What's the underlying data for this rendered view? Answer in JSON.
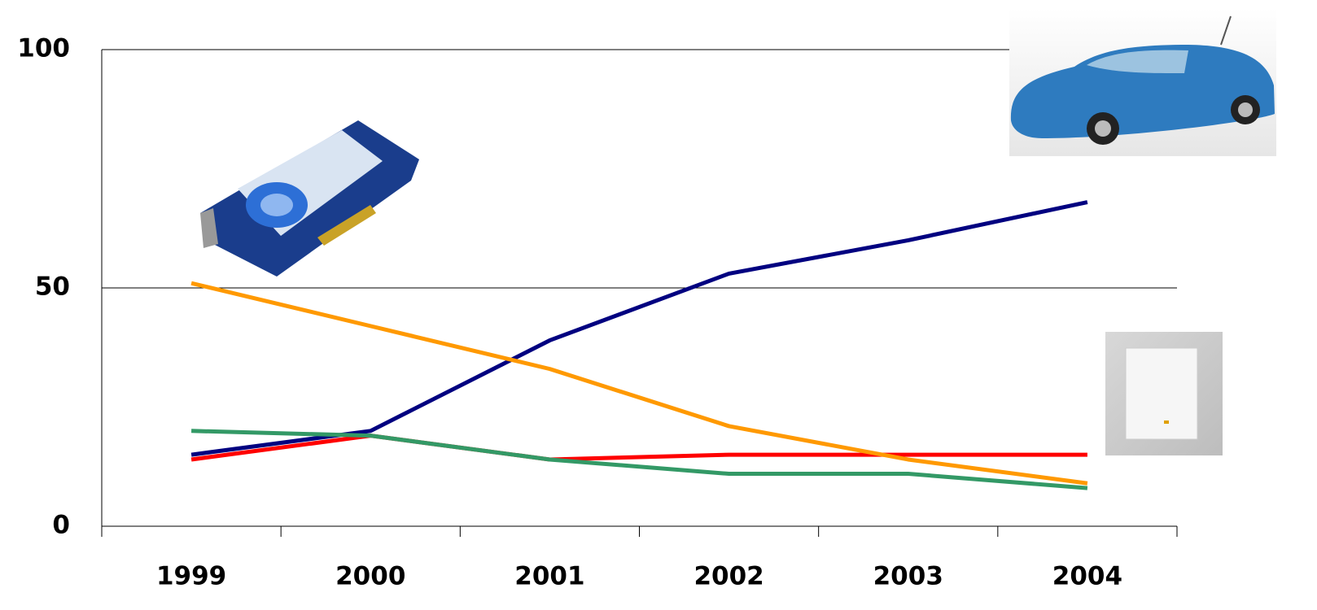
{
  "chart_data": {
    "type": "line",
    "categories": [
      "1999",
      "2000",
      "2001",
      "2002",
      "2003",
      "2004"
    ],
    "series": [
      {
        "color": "#000080",
        "values": [
          15,
          20,
          39,
          53,
          60,
          68
        ]
      },
      {
        "color": "#ff0000",
        "values": [
          14,
          19,
          14,
          15,
          15,
          15
        ]
      },
      {
        "color": "#339966",
        "values": [
          20,
          19,
          14,
          11,
          11,
          8
        ]
      },
      {
        "color": "#ff9900",
        "values": [
          51,
          42,
          33,
          21,
          14,
          9
        ]
      }
    ],
    "ylim": [
      0,
      100
    ],
    "yticks": [
      0,
      50,
      100
    ],
    "grid": true
  }
}
